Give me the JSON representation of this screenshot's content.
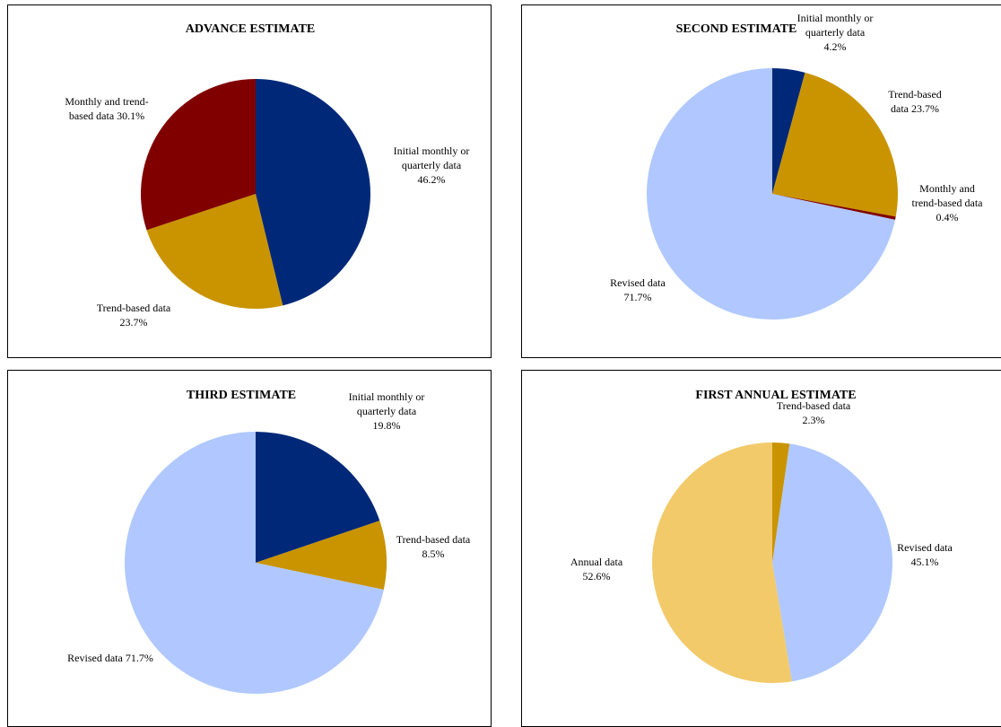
{
  "chart_data": [
    {
      "type": "pie",
      "title": "ADVANCE ESTIMATE",
      "slices": [
        {
          "label": [
            "Initial monthly or",
            "quarterly data",
            "46.2%"
          ],
          "value": 46.2,
          "color": "#002878"
        },
        {
          "label": [
            "Trend-based data",
            "23.7%"
          ],
          "value": 23.7,
          "color": "#C99400"
        },
        {
          "label": [
            "Monthly and trend-",
            "based data 30.1%"
          ],
          "value": 30.1,
          "color": "#800000"
        }
      ]
    },
    {
      "type": "pie",
      "title": "SECOND ESTIMATE",
      "slices": [
        {
          "label": [
            "Initial monthly or",
            "quarterly data",
            "4.2%"
          ],
          "value": 4.2,
          "color": "#002878"
        },
        {
          "label": [
            "Trend-based",
            "data 23.7%"
          ],
          "value": 23.7,
          "color": "#C99400"
        },
        {
          "label": [
            "Monthly and",
            "trend-based data",
            "0.4%"
          ],
          "value": 0.4,
          "color": "#800000"
        },
        {
          "label": [
            "Revised data",
            "71.7%"
          ],
          "value": 71.7,
          "color": "#B0C8FF"
        }
      ]
    },
    {
      "type": "pie",
      "title": "THIRD ESTIMATE",
      "slices": [
        {
          "label": [
            "Initial monthly or",
            "quarterly data",
            "19.8%"
          ],
          "value": 19.8,
          "color": "#002878"
        },
        {
          "label": [
            "Trend-based data",
            "8.5%"
          ],
          "value": 8.5,
          "color": "#C99400"
        },
        {
          "label": [
            "Revised data 71.7%"
          ],
          "value": 71.7,
          "color": "#B0C8FF"
        }
      ]
    },
    {
      "type": "pie",
      "title": "FIRST ANNUAL ESTIMATE",
      "slices": [
        {
          "label": [
            "Trend-based data",
            "2.3%"
          ],
          "value": 2.3,
          "color": "#C99400"
        },
        {
          "label": [
            "Revised data",
            "45.1%"
          ],
          "value": 45.1,
          "color": "#B0C8FF"
        },
        {
          "label": [
            "Annual data",
            "52.6%"
          ],
          "value": 52.6,
          "color": "#F2CA6A"
        }
      ]
    }
  ]
}
